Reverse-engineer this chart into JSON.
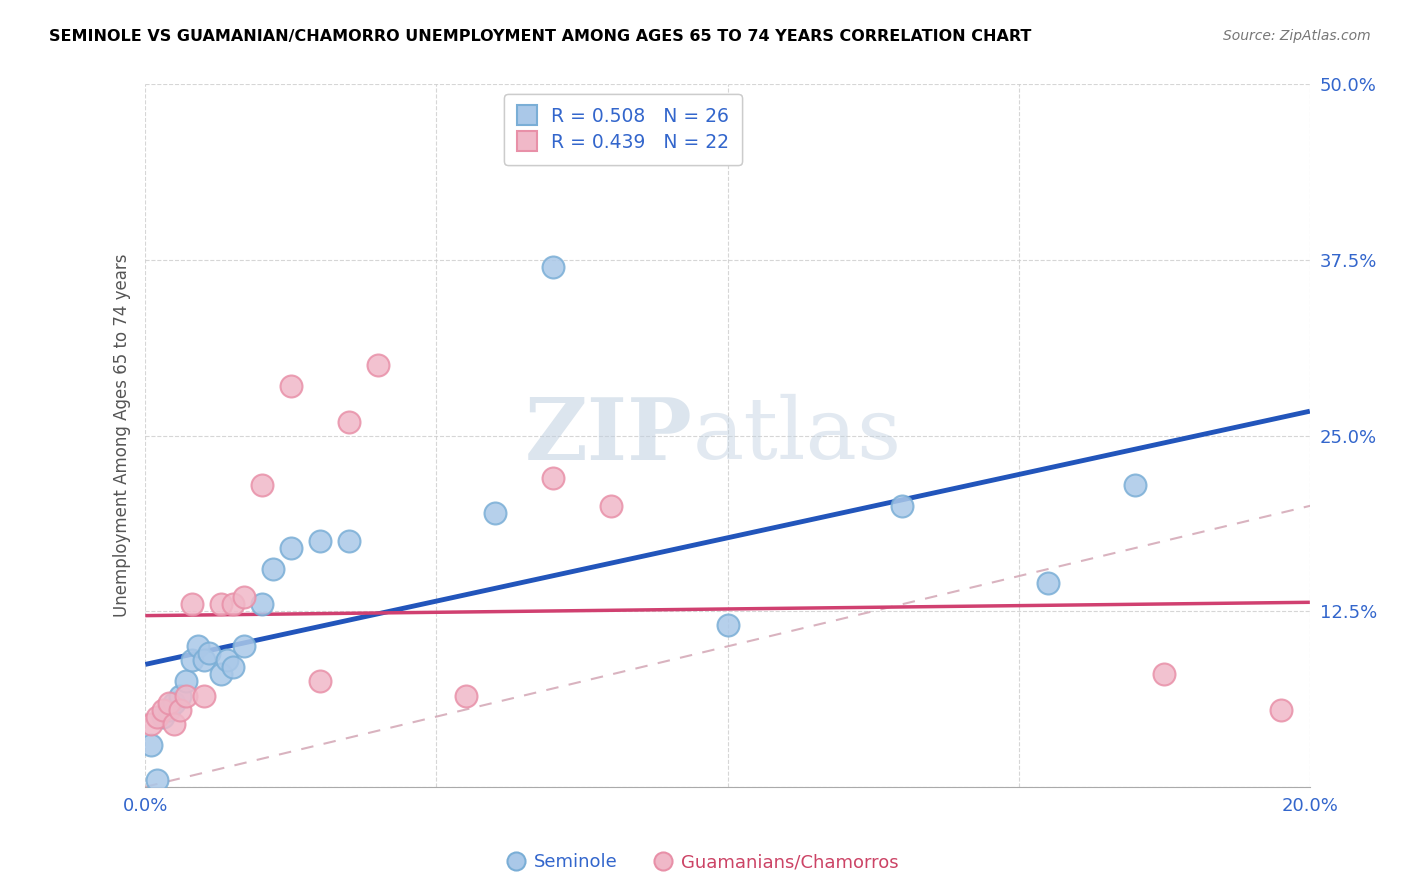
{
  "title": "SEMINOLE VS GUAMANIAN/CHAMORRO UNEMPLOYMENT AMONG AGES 65 TO 74 YEARS CORRELATION CHART",
  "source": "Source: ZipAtlas.com",
  "ylabel": "Unemployment Among Ages 65 to 74 years",
  "legend_label_1": "R = 0.508   N = 26",
  "legend_label_2": "R = 0.439   N = 22",
  "legend_label_3": "Seminole",
  "legend_label_4": "Guamanians/Chamorros",
  "watermark_zip": "ZIP",
  "watermark_atlas": "atlas",
  "blue_fill": "#aac8e8",
  "blue_edge": "#7aaed6",
  "pink_fill": "#f0b8c8",
  "pink_edge": "#e890a8",
  "blue_line_color": "#2255bb",
  "pink_line_color": "#d04070",
  "diag_color": "#d0a0b0",
  "seminole_x": [
    0.001,
    0.002,
    0.003,
    0.004,
    0.005,
    0.006,
    0.007,
    0.008,
    0.009,
    0.01,
    0.011,
    0.013,
    0.014,
    0.015,
    0.017,
    0.02,
    0.022,
    0.025,
    0.03,
    0.035,
    0.06,
    0.07,
    0.1,
    0.13,
    0.155,
    0.17
  ],
  "seminole_y": [
    0.03,
    0.005,
    0.05,
    0.055,
    0.06,
    0.065,
    0.075,
    0.09,
    0.1,
    0.09,
    0.095,
    0.08,
    0.09,
    0.085,
    0.1,
    0.13,
    0.155,
    0.17,
    0.175,
    0.175,
    0.195,
    0.37,
    0.115,
    0.2,
    0.145,
    0.215
  ],
  "chamorro_x": [
    0.001,
    0.002,
    0.003,
    0.004,
    0.005,
    0.006,
    0.007,
    0.008,
    0.01,
    0.013,
    0.015,
    0.017,
    0.02,
    0.025,
    0.03,
    0.035,
    0.04,
    0.055,
    0.07,
    0.08,
    0.175,
    0.195
  ],
  "chamorro_y": [
    0.045,
    0.05,
    0.055,
    0.06,
    0.045,
    0.055,
    0.065,
    0.13,
    0.065,
    0.13,
    0.13,
    0.135,
    0.215,
    0.285,
    0.075,
    0.26,
    0.3,
    0.065,
    0.22,
    0.2,
    0.08,
    0.055
  ],
  "xlim": [
    0.0,
    0.2
  ],
  "ylim": [
    0.0,
    0.5
  ],
  "xticks": [
    0.0,
    0.05,
    0.1,
    0.15,
    0.2
  ],
  "yticks": [
    0.0,
    0.125,
    0.25,
    0.375,
    0.5
  ],
  "ytick_labels": [
    "",
    "12.5%",
    "25.0%",
    "37.5%",
    "50.0%"
  ],
  "xtick_labels": [
    "0.0%",
    "",
    "",
    "",
    "20.0%"
  ],
  "blue_text_color": "#3366cc",
  "pink_text_color": "#cc4466"
}
